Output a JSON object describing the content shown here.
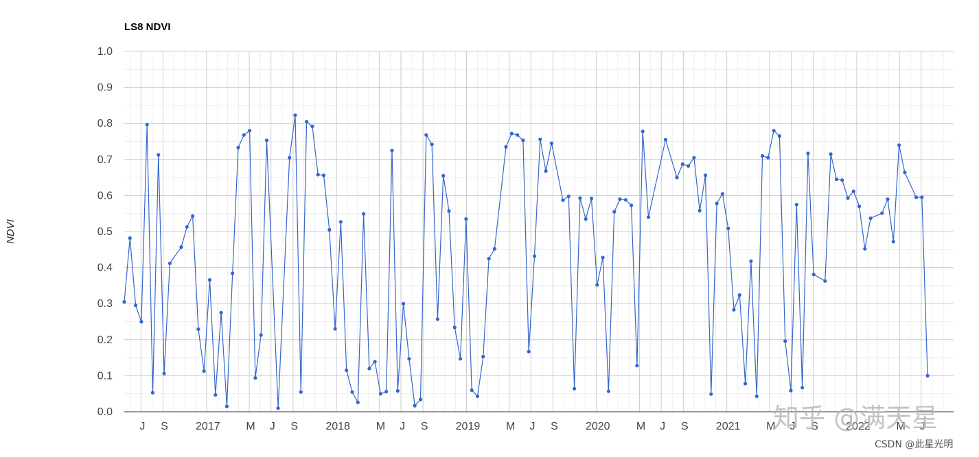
{
  "chart_data": {
    "type": "line",
    "title": "LS8 NDVI",
    "xlabel": "",
    "ylabel": "NDVI",
    "ylim": [
      0,
      1
    ],
    "yticks": [
      "0.0",
      "0.1",
      "0.2",
      "0.3",
      "0.4",
      "0.5",
      "0.6",
      "0.7",
      "0.8",
      "0.9",
      "1.0"
    ],
    "xlim": [
      "2016-05-15",
      "2022-09-30"
    ],
    "xticks": [
      {
        "date": "2016-07-01",
        "label": "J"
      },
      {
        "date": "2016-09-01",
        "label": "S"
      },
      {
        "date": "2017-01-01",
        "label": "2017"
      },
      {
        "date": "2017-05-01",
        "label": "M"
      },
      {
        "date": "2017-07-01",
        "label": "J"
      },
      {
        "date": "2017-09-01",
        "label": "S"
      },
      {
        "date": "2018-01-01",
        "label": "2018"
      },
      {
        "date": "2018-05-01",
        "label": "M"
      },
      {
        "date": "2018-07-01",
        "label": "J"
      },
      {
        "date": "2018-09-01",
        "label": "S"
      },
      {
        "date": "2019-01-01",
        "label": "2019"
      },
      {
        "date": "2019-05-01",
        "label": "M"
      },
      {
        "date": "2019-07-01",
        "label": "J"
      },
      {
        "date": "2019-09-01",
        "label": "S"
      },
      {
        "date": "2020-01-01",
        "label": "2020"
      },
      {
        "date": "2020-05-01",
        "label": "M"
      },
      {
        "date": "2020-07-01",
        "label": "J"
      },
      {
        "date": "2020-09-01",
        "label": "S"
      },
      {
        "date": "2021-01-01",
        "label": "2021"
      },
      {
        "date": "2021-05-01",
        "label": "M"
      },
      {
        "date": "2021-07-01",
        "label": "J"
      },
      {
        "date": "2021-09-01",
        "label": "S"
      },
      {
        "date": "2022-01-01",
        "label": "2022"
      },
      {
        "date": "2022-05-01",
        "label": "M"
      },
      {
        "date": "2022-07-01",
        "label": "J"
      }
    ],
    "grid": true,
    "legend": "none",
    "series_color": "#3366cc",
    "series": [
      {
        "points": [
          [
            "2016-05-15",
            0.305
          ],
          [
            "2016-05-31",
            0.482
          ],
          [
            "2016-06-16",
            0.295
          ],
          [
            "2016-07-02",
            0.25
          ],
          [
            "2016-07-18",
            0.797
          ],
          [
            "2016-08-03",
            0.053
          ],
          [
            "2016-08-19",
            0.713
          ],
          [
            "2016-09-04",
            0.106
          ],
          [
            "2016-09-20",
            0.412
          ],
          [
            "2016-10-22",
            0.457
          ],
          [
            "2016-11-07",
            0.513
          ],
          [
            "2016-11-23",
            0.543
          ],
          [
            "2016-12-09",
            0.229
          ],
          [
            "2016-12-25",
            0.113
          ],
          [
            "2017-01-10",
            0.366
          ],
          [
            "2017-01-26",
            0.047
          ],
          [
            "2017-02-11",
            0.275
          ],
          [
            "2017-02-27",
            0.015
          ],
          [
            "2017-03-15",
            0.384
          ],
          [
            "2017-03-31",
            0.733
          ],
          [
            "2017-04-16",
            0.768
          ],
          [
            "2017-05-02",
            0.78
          ],
          [
            "2017-05-18",
            0.094
          ],
          [
            "2017-06-03",
            0.213
          ],
          [
            "2017-06-19",
            0.753
          ],
          [
            "2017-07-21",
            0.01
          ],
          [
            "2017-08-22",
            0.705
          ],
          [
            "2017-09-07",
            0.823
          ],
          [
            "2017-09-23",
            0.055
          ],
          [
            "2017-10-09",
            0.805
          ],
          [
            "2017-10-25",
            0.792
          ],
          [
            "2017-11-10",
            0.658
          ],
          [
            "2017-11-26",
            0.656
          ],
          [
            "2017-12-12",
            0.505
          ],
          [
            "2017-12-28",
            0.23
          ],
          [
            "2018-01-13",
            0.527
          ],
          [
            "2018-01-29",
            0.115
          ],
          [
            "2018-02-14",
            0.055
          ],
          [
            "2018-03-02",
            0.026
          ],
          [
            "2018-03-18",
            0.549
          ],
          [
            "2018-04-03",
            0.12
          ],
          [
            "2018-04-19",
            0.139
          ],
          [
            "2018-05-05",
            0.05
          ],
          [
            "2018-05-21",
            0.056
          ],
          [
            "2018-06-06",
            0.725
          ],
          [
            "2018-06-22",
            0.058
          ],
          [
            "2018-07-08",
            0.3
          ],
          [
            "2018-07-24",
            0.147
          ],
          [
            "2018-08-09",
            0.017
          ],
          [
            "2018-08-25",
            0.034
          ],
          [
            "2018-09-10",
            0.768
          ],
          [
            "2018-09-26",
            0.742
          ],
          [
            "2018-10-12",
            0.257
          ],
          [
            "2018-10-28",
            0.655
          ],
          [
            "2018-11-13",
            0.557
          ],
          [
            "2018-11-29",
            0.234
          ],
          [
            "2018-12-15",
            0.147
          ],
          [
            "2018-12-31",
            0.535
          ],
          [
            "2019-01-16",
            0.06
          ],
          [
            "2019-02-01",
            0.043
          ],
          [
            "2019-02-17",
            0.153
          ],
          [
            "2019-03-05",
            0.425
          ],
          [
            "2019-03-21",
            0.452
          ],
          [
            "2019-04-22",
            0.735
          ],
          [
            "2019-05-08",
            0.772
          ],
          [
            "2019-05-24",
            0.768
          ],
          [
            "2019-06-09",
            0.753
          ],
          [
            "2019-06-25",
            0.167
          ],
          [
            "2019-07-11",
            0.432
          ],
          [
            "2019-07-27",
            0.756
          ],
          [
            "2019-08-12",
            0.668
          ],
          [
            "2019-08-28",
            0.745
          ],
          [
            "2019-09-29",
            0.587
          ],
          [
            "2019-10-15",
            0.598
          ],
          [
            "2019-10-31",
            0.064
          ],
          [
            "2019-11-16",
            0.593
          ],
          [
            "2019-12-02",
            0.535
          ],
          [
            "2019-12-18",
            0.592
          ],
          [
            "2020-01-03",
            0.352
          ],
          [
            "2020-01-19",
            0.428
          ],
          [
            "2020-02-04",
            0.057
          ],
          [
            "2020-02-20",
            0.555
          ],
          [
            "2020-03-07",
            0.59
          ],
          [
            "2020-03-23",
            0.588
          ],
          [
            "2020-04-08",
            0.573
          ],
          [
            "2020-04-24",
            0.128
          ],
          [
            "2020-05-10",
            0.778
          ],
          [
            "2020-05-26",
            0.54
          ],
          [
            "2020-07-13",
            0.755
          ],
          [
            "2020-08-14",
            0.65
          ],
          [
            "2020-08-30",
            0.687
          ],
          [
            "2020-09-15",
            0.682
          ],
          [
            "2020-10-01",
            0.705
          ],
          [
            "2020-10-17",
            0.558
          ],
          [
            "2020-11-02",
            0.656
          ],
          [
            "2020-11-18",
            0.049
          ],
          [
            "2020-12-04",
            0.578
          ],
          [
            "2020-12-20",
            0.605
          ],
          [
            "2021-01-05",
            0.509
          ],
          [
            "2021-01-21",
            0.283
          ],
          [
            "2021-02-06",
            0.324
          ],
          [
            "2021-02-22",
            0.078
          ],
          [
            "2021-03-10",
            0.418
          ],
          [
            "2021-03-26",
            0.043
          ],
          [
            "2021-04-11",
            0.71
          ],
          [
            "2021-04-27",
            0.705
          ],
          [
            "2021-05-13",
            0.78
          ],
          [
            "2021-05-29",
            0.765
          ],
          [
            "2021-06-14",
            0.196
          ],
          [
            "2021-06-30",
            0.059
          ],
          [
            "2021-07-16",
            0.575
          ],
          [
            "2021-08-01",
            0.067
          ],
          [
            "2021-08-17",
            0.717
          ],
          [
            "2021-09-02",
            0.381
          ],
          [
            "2021-10-04",
            0.363
          ],
          [
            "2021-10-20",
            0.715
          ],
          [
            "2021-11-05",
            0.645
          ],
          [
            "2021-11-21",
            0.643
          ],
          [
            "2021-12-07",
            0.593
          ],
          [
            "2021-12-23",
            0.612
          ],
          [
            "2022-01-08",
            0.57
          ],
          [
            "2022-01-24",
            0.452
          ],
          [
            "2022-02-09",
            0.537
          ],
          [
            "2022-03-13",
            0.551
          ],
          [
            "2022-03-29",
            0.59
          ],
          [
            "2022-04-14",
            0.472
          ],
          [
            "2022-04-30",
            0.74
          ],
          [
            "2022-05-16",
            0.664
          ],
          [
            "2022-06-17",
            0.595
          ],
          [
            "2022-07-03",
            0.595
          ],
          [
            "2022-07-19",
            0.1
          ]
        ]
      }
    ]
  },
  "watermark": {
    "primary": "知乎 @满天星",
    "secondary": "CSDN @此星光明"
  }
}
